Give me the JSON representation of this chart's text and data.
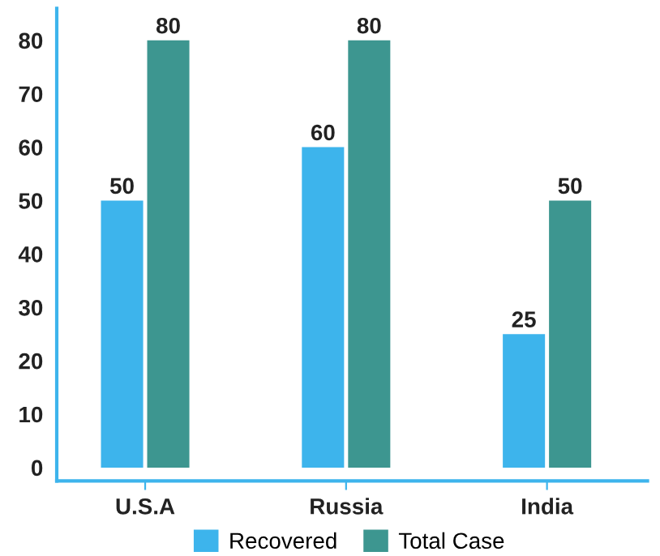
{
  "chart_data": {
    "type": "bar",
    "categories": [
      "U.S.A",
      "Russia",
      "India"
    ],
    "series": [
      {
        "name": "Recovered",
        "color": "#3db4ec",
        "values": [
          50,
          60,
          25
        ]
      },
      {
        "name": "Total Case",
        "color": "#3d9690",
        "values": [
          80,
          80,
          50
        ]
      }
    ],
    "ylim": [
      -2.5,
      86
    ],
    "yticks": [
      0,
      10,
      20,
      30,
      40,
      50,
      60,
      70,
      80
    ],
    "data_labels": true,
    "grid": false,
    "legend": "bottom"
  }
}
